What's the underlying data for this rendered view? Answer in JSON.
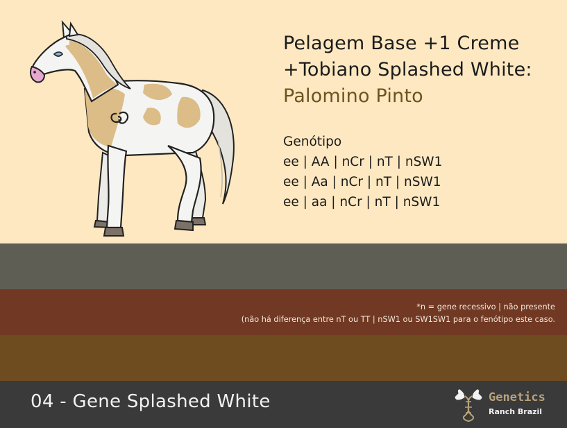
{
  "card": {
    "title_line1": "Pelagem Base +1 Creme",
    "title_line2": "+Tobiano Splashed White:",
    "result": "Palomino Pinto",
    "genotype_label": "Genótipo",
    "genotypes": [
      "ee | AA | nCr | nT | nSW1",
      "ee | Aa | nCr | nT | nSW1",
      "ee | aa | nCr | nT | nSW1"
    ]
  },
  "notes": {
    "line1": "*n = gene recessivo | não presente",
    "line2": "(não há diferença entre nT ou TT | nSW1 ou SW1SW1 para o fenótipo este caso."
  },
  "footer": {
    "title": "04 - Gene Splashed White",
    "logo_word": "Genetics",
    "logo_sub": "Ranch Brazil"
  },
  "colors": {
    "cream_background": "#fde8c1",
    "band_gray": "#5f5e55",
    "band_brown": "#713923",
    "band_olive": "#6f4b20",
    "footer_background": "#3a3a3a",
    "result_accent": "#6d5320",
    "palomino_coat": "#dcbc87"
  },
  "icons": {
    "horse": "palomino-pinto-horse-illustration",
    "logo": "horse-heads-dna-logo"
  }
}
